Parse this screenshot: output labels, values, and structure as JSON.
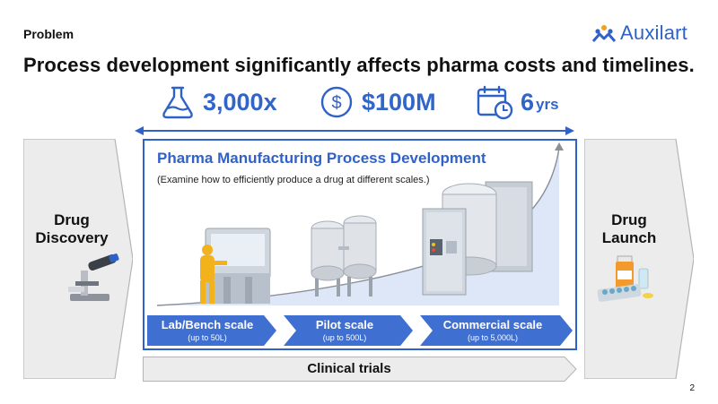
{
  "header": {
    "section": "Problem",
    "logo_text": "Auxilart",
    "headline": "Process development significantly affects pharma costs and timelines."
  },
  "stats": [
    {
      "value": "3,000x",
      "icon": "flask-icon"
    },
    {
      "value": "$100M",
      "icon": "dollar-coin-icon"
    },
    {
      "value": "6",
      "unit": "yrs",
      "icon": "calendar-clock-icon"
    }
  ],
  "left_stage": {
    "line1": "Drug",
    "line2": "Discovery",
    "icon": "microscope-icon"
  },
  "right_stage": {
    "line1": "Drug",
    "line2": "Launch",
    "icon": "medicine-icon"
  },
  "panel": {
    "title": "Pharma Manufacturing Process Development",
    "subtitle": "(Examine how to efficiently produce a drug at different scales.)"
  },
  "scales": [
    {
      "name": "Lab/Bench scale",
      "capacity": "(up to 50L)"
    },
    {
      "name": "Pilot scale",
      "capacity": "(up to 500L)"
    },
    {
      "name": "Commercial scale",
      "capacity": "(up to 5,000L)"
    }
  ],
  "clinical": {
    "label": "Clinical trials"
  },
  "page_number": "2",
  "colors": {
    "accent": "#2f62c9",
    "chevron": "#3f6fd1",
    "curve_fill": "#dde7f7",
    "gray": "#ececec"
  }
}
